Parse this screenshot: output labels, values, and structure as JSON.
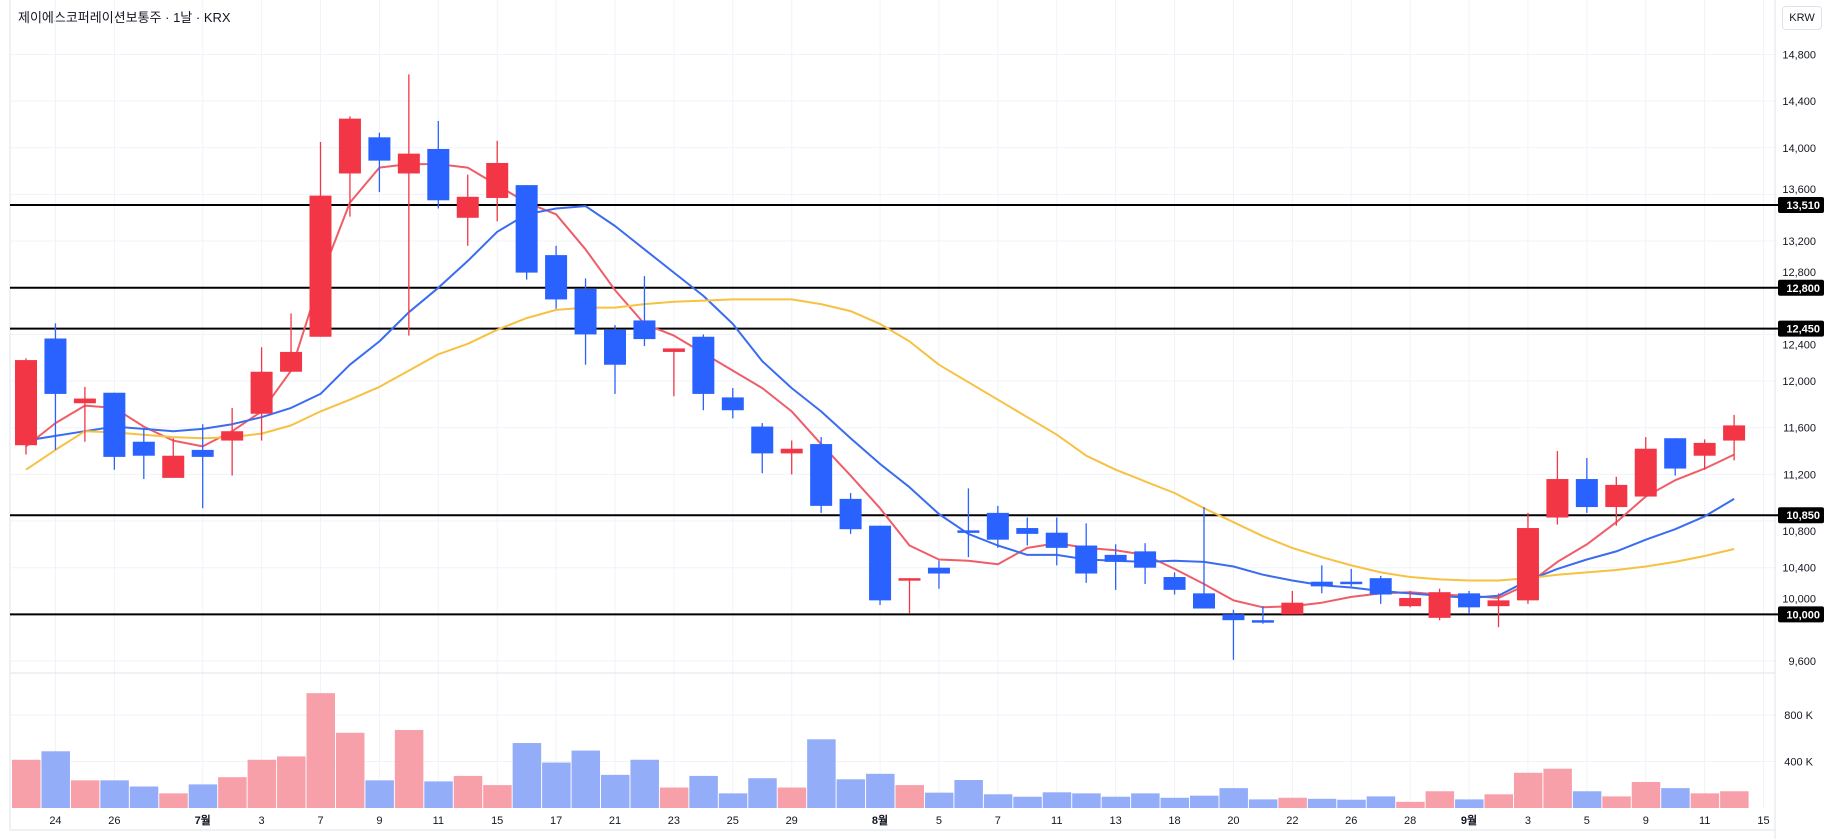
{
  "header": {
    "title": "제이에스코퍼레이션보통주 · 1날 · KRX",
    "currency": "KRW"
  },
  "colors": {
    "up": "#f23645",
    "down": "#2962ff",
    "vol_up": "#f7a0a9",
    "vol_down": "#93adf9",
    "ma_short": "#ef5d68",
    "ma_mid": "#3a6cf0",
    "ma_long": "#f7c142",
    "level": "#000000"
  },
  "chart_data": {
    "type": "candlestick",
    "title": "제이에스코퍼레이션보통주 · 1날 · KRX",
    "ylim": [
      9450,
      14950
    ],
    "y_ticks": [
      9600,
      10000,
      10400,
      10800,
      11200,
      11600,
      12000,
      12400,
      12800,
      13200,
      13600,
      14000,
      14400,
      14800
    ],
    "y_tick_labels": [
      "9,600",
      "10,000",
      "10,400",
      "10,800",
      "11,200",
      "11,600",
      "12,000",
      "12,400",
      "12,800",
      "13,200",
      "13,600",
      "14,000",
      "14,400",
      "14,800"
    ],
    "volume_ticks": [
      400,
      800
    ],
    "volume_tick_labels": [
      "400 K",
      "800 K"
    ],
    "x_ticks": [
      {
        "index": 2,
        "label": "24",
        "bold": false
      },
      {
        "index": 4,
        "label": "26",
        "bold": false
      },
      {
        "index": 7,
        "label": "7월",
        "bold": true
      },
      {
        "index": 9,
        "label": "3",
        "bold": false
      },
      {
        "index": 11,
        "label": "7",
        "bold": false
      },
      {
        "index": 13,
        "label": "9",
        "bold": false
      },
      {
        "index": 15,
        "label": "11",
        "bold": false
      },
      {
        "index": 17,
        "label": "15",
        "bold": false
      },
      {
        "index": 19,
        "label": "17",
        "bold": false
      },
      {
        "index": 21,
        "label": "21",
        "bold": false
      },
      {
        "index": 23,
        "label": "23",
        "bold": false
      },
      {
        "index": 25,
        "label": "25",
        "bold": false
      },
      {
        "index": 27,
        "label": "29",
        "bold": false
      },
      {
        "index": 30,
        "label": "8월",
        "bold": true
      },
      {
        "index": 32,
        "label": "5",
        "bold": false
      },
      {
        "index": 34,
        "label": "7",
        "bold": false
      },
      {
        "index": 36,
        "label": "11",
        "bold": false
      },
      {
        "index": 38,
        "label": "13",
        "bold": false
      },
      {
        "index": 40,
        "label": "18",
        "bold": false
      },
      {
        "index": 42,
        "label": "20",
        "bold": false
      },
      {
        "index": 44,
        "label": "22",
        "bold": false
      },
      {
        "index": 46,
        "label": "26",
        "bold": false
      },
      {
        "index": 48,
        "label": "28",
        "bold": false
      },
      {
        "index": 50,
        "label": "9월",
        "bold": true
      },
      {
        "index": 52,
        "label": "3",
        "bold": false
      },
      {
        "index": 54,
        "label": "5",
        "bold": false
      },
      {
        "index": 56,
        "label": "9",
        "bold": false
      },
      {
        "index": 58,
        "label": "11",
        "bold": false
      },
      {
        "index": 60,
        "label": "15",
        "bold": false
      }
    ],
    "levels": [
      {
        "value": 13510,
        "label": "13,510"
      },
      {
        "value": 12800,
        "label": "12,800"
      },
      {
        "value": 12450,
        "label": "12,450"
      },
      {
        "value": 10850,
        "label": "10,850"
      },
      {
        "value": 10000,
        "label": "10,000"
      }
    ],
    "candles": [
      {
        "o": 11450,
        "h": 12195,
        "l": 11370,
        "c": 12180
      },
      {
        "o": 12365,
        "h": 12495,
        "l": 11410,
        "c": 11890
      },
      {
        "o": 11810,
        "h": 11950,
        "l": 11480,
        "c": 11850
      },
      {
        "o": 11900,
        "h": 11900,
        "l": 11240,
        "c": 11350
      },
      {
        "o": 11480,
        "h": 11590,
        "l": 11160,
        "c": 11360
      },
      {
        "o": 11170,
        "h": 11510,
        "l": 11170,
        "c": 11360
      },
      {
        "o": 11410,
        "h": 11630,
        "l": 10910,
        "c": 11350
      },
      {
        "o": 11490,
        "h": 11770,
        "l": 11190,
        "c": 11570
      },
      {
        "o": 11720,
        "h": 12290,
        "l": 11490,
        "c": 12080
      },
      {
        "o": 12080,
        "h": 12580,
        "l": 12080,
        "c": 12250
      },
      {
        "o": 12380,
        "h": 14050,
        "l": 12380,
        "c": 13590
      },
      {
        "o": 13780,
        "h": 14270,
        "l": 13410,
        "c": 14250
      },
      {
        "o": 14090,
        "h": 14130,
        "l": 13620,
        "c": 13890
      },
      {
        "o": 13780,
        "h": 14630,
        "l": 12390,
        "c": 13950
      },
      {
        "o": 13990,
        "h": 14230,
        "l": 13480,
        "c": 13550
      },
      {
        "o": 13400,
        "h": 13770,
        "l": 13160,
        "c": 13580
      },
      {
        "o": 13570,
        "h": 14060,
        "l": 13370,
        "c": 13870
      },
      {
        "o": 13680,
        "h": 13680,
        "l": 12870,
        "c": 12930
      },
      {
        "o": 13080,
        "h": 13160,
        "l": 12620,
        "c": 12700
      },
      {
        "o": 12790,
        "h": 12880,
        "l": 12140,
        "c": 12400
      },
      {
        "o": 12440,
        "h": 12480,
        "l": 11890,
        "c": 12140
      },
      {
        "o": 12520,
        "h": 12900,
        "l": 12300,
        "c": 12360
      },
      {
        "o": 12250,
        "h": 12280,
        "l": 11870,
        "c": 12280
      },
      {
        "o": 12380,
        "h": 12400,
        "l": 11750,
        "c": 11890
      },
      {
        "o": 11860,
        "h": 11940,
        "l": 11680,
        "c": 11750
      },
      {
        "o": 11610,
        "h": 11640,
        "l": 11210,
        "c": 11380
      },
      {
        "o": 11380,
        "h": 11490,
        "l": 11200,
        "c": 11420
      },
      {
        "o": 11460,
        "h": 11520,
        "l": 10870,
        "c": 10930
      },
      {
        "o": 10990,
        "h": 11040,
        "l": 10690,
        "c": 10730
      },
      {
        "o": 10760,
        "h": 10760,
        "l": 10080,
        "c": 10120
      },
      {
        "o": 10290,
        "h": 10310,
        "l": 10010,
        "c": 10310
      },
      {
        "o": 10400,
        "h": 10460,
        "l": 10220,
        "c": 10350
      },
      {
        "o": 10720,
        "h": 11080,
        "l": 10490,
        "c": 10700
      },
      {
        "o": 10870,
        "h": 10930,
        "l": 10570,
        "c": 10640
      },
      {
        "o": 10740,
        "h": 10830,
        "l": 10590,
        "c": 10690
      },
      {
        "o": 10700,
        "h": 10830,
        "l": 10420,
        "c": 10570
      },
      {
        "o": 10590,
        "h": 10780,
        "l": 10270,
        "c": 10350
      },
      {
        "o": 10510,
        "h": 10600,
        "l": 10210,
        "c": 10450
      },
      {
        "o": 10540,
        "h": 10610,
        "l": 10260,
        "c": 10400
      },
      {
        "o": 10320,
        "h": 10360,
        "l": 10170,
        "c": 10210
      },
      {
        "o": 10180,
        "h": 10920,
        "l": 10050,
        "c": 10050
      },
      {
        "o": 10000,
        "h": 10040,
        "l": 9610,
        "c": 9950
      },
      {
        "o": 9950,
        "h": 10070,
        "l": 9920,
        "c": 9940
      },
      {
        "o": 10000,
        "h": 10200,
        "l": 10000,
        "c": 10100
      },
      {
        "o": 10280,
        "h": 10420,
        "l": 10180,
        "c": 10240
      },
      {
        "o": 10280,
        "h": 10390,
        "l": 10240,
        "c": 10260
      },
      {
        "o": 10310,
        "h": 10330,
        "l": 10090,
        "c": 10170
      },
      {
        "o": 10070,
        "h": 10200,
        "l": 10060,
        "c": 10140
      },
      {
        "o": 9970,
        "h": 10220,
        "l": 9950,
        "c": 10190
      },
      {
        "o": 10180,
        "h": 10200,
        "l": 10010,
        "c": 10060
      },
      {
        "o": 10070,
        "h": 10180,
        "l": 9890,
        "c": 10120
      },
      {
        "o": 10120,
        "h": 10870,
        "l": 10090,
        "c": 10740
      },
      {
        "o": 10830,
        "h": 11400,
        "l": 10770,
        "c": 11160
      },
      {
        "o": 11160,
        "h": 11340,
        "l": 10870,
        "c": 10920
      },
      {
        "o": 10920,
        "h": 11180,
        "l": 10760,
        "c": 11110
      },
      {
        "o": 11010,
        "h": 11520,
        "l": 11010,
        "c": 11420
      },
      {
        "o": 11510,
        "h": 11510,
        "l": 11190,
        "c": 11250
      },
      {
        "o": 11360,
        "h": 11500,
        "l": 11240,
        "c": 11470
      },
      {
        "o": 11490,
        "h": 11710,
        "l": 11320,
        "c": 11620
      }
    ],
    "volume_k": [
      415,
      488,
      238,
      238,
      185,
      126,
      203,
      265,
      415,
      444,
      988,
      647,
      238,
      671,
      229,
      276,
      197,
      559,
      391,
      494,
      285,
      415,
      176,
      276,
      126,
      256,
      176,
      591,
      247,
      294,
      197,
      132,
      241,
      118,
      97,
      135,
      126,
      97,
      126,
      88,
      106,
      171,
      74,
      88,
      79,
      71,
      100,
      53,
      144,
      74,
      118,
      303,
      338,
      144,
      100,
      224,
      171,
      126,
      144
    ],
    "series": [
      {
        "name": "ma_short",
        "values": [
          11440,
          11640,
          11790,
          11770,
          11610,
          11490,
          11440,
          11570,
          11740,
          12090,
          12880,
          13530,
          13830,
          13860,
          13860,
          13830,
          13680,
          13530,
          13430,
          13130,
          12780,
          12490,
          12390,
          12240,
          12090,
          11940,
          11740,
          11460,
          11190,
          10910,
          10590,
          10470,
          10460,
          10430,
          10570,
          10610,
          10570,
          10550,
          10510,
          10390,
          10260,
          10120,
          10060,
          10070,
          10100,
          10150,
          10180,
          10190,
          10170,
          10160,
          10140,
          10260,
          10450,
          10600,
          10790,
          11010,
          11150,
          11250,
          11370
        ]
      },
      {
        "name": "ma_mid",
        "values": [
          11490,
          11530,
          11570,
          11610,
          11590,
          11570,
          11590,
          11630,
          11690,
          11770,
          11890,
          12140,
          12340,
          12590,
          12800,
          13030,
          13280,
          13430,
          13480,
          13500,
          13330,
          13130,
          12930,
          12730,
          12490,
          12170,
          11940,
          11740,
          11510,
          11290,
          11090,
          10860,
          10690,
          10590,
          10510,
          10510,
          10470,
          10460,
          10450,
          10460,
          10450,
          10410,
          10340,
          10290,
          10250,
          10230,
          10200,
          10180,
          10160,
          10140,
          10160,
          10290,
          10390,
          10470,
          10540,
          10640,
          10730,
          10840,
          10990
        ]
      },
      {
        "name": "ma_long",
        "values": [
          11240,
          11410,
          11570,
          11560,
          11540,
          11520,
          11510,
          11520,
          11550,
          11620,
          11740,
          11840,
          11950,
          12090,
          12230,
          12320,
          12440,
          12540,
          12610,
          12630,
          12630,
          12660,
          12680,
          12690,
          12700,
          12700,
          12700,
          12660,
          12600,
          12490,
          12340,
          12140,
          11990,
          11840,
          11690,
          11540,
          11360,
          11240,
          11140,
          11040,
          10910,
          10790,
          10670,
          10570,
          10490,
          10420,
          10360,
          10320,
          10300,
          10290,
          10290,
          10310,
          10340,
          10360,
          10380,
          10410,
          10450,
          10500,
          10560
        ]
      }
    ]
  }
}
